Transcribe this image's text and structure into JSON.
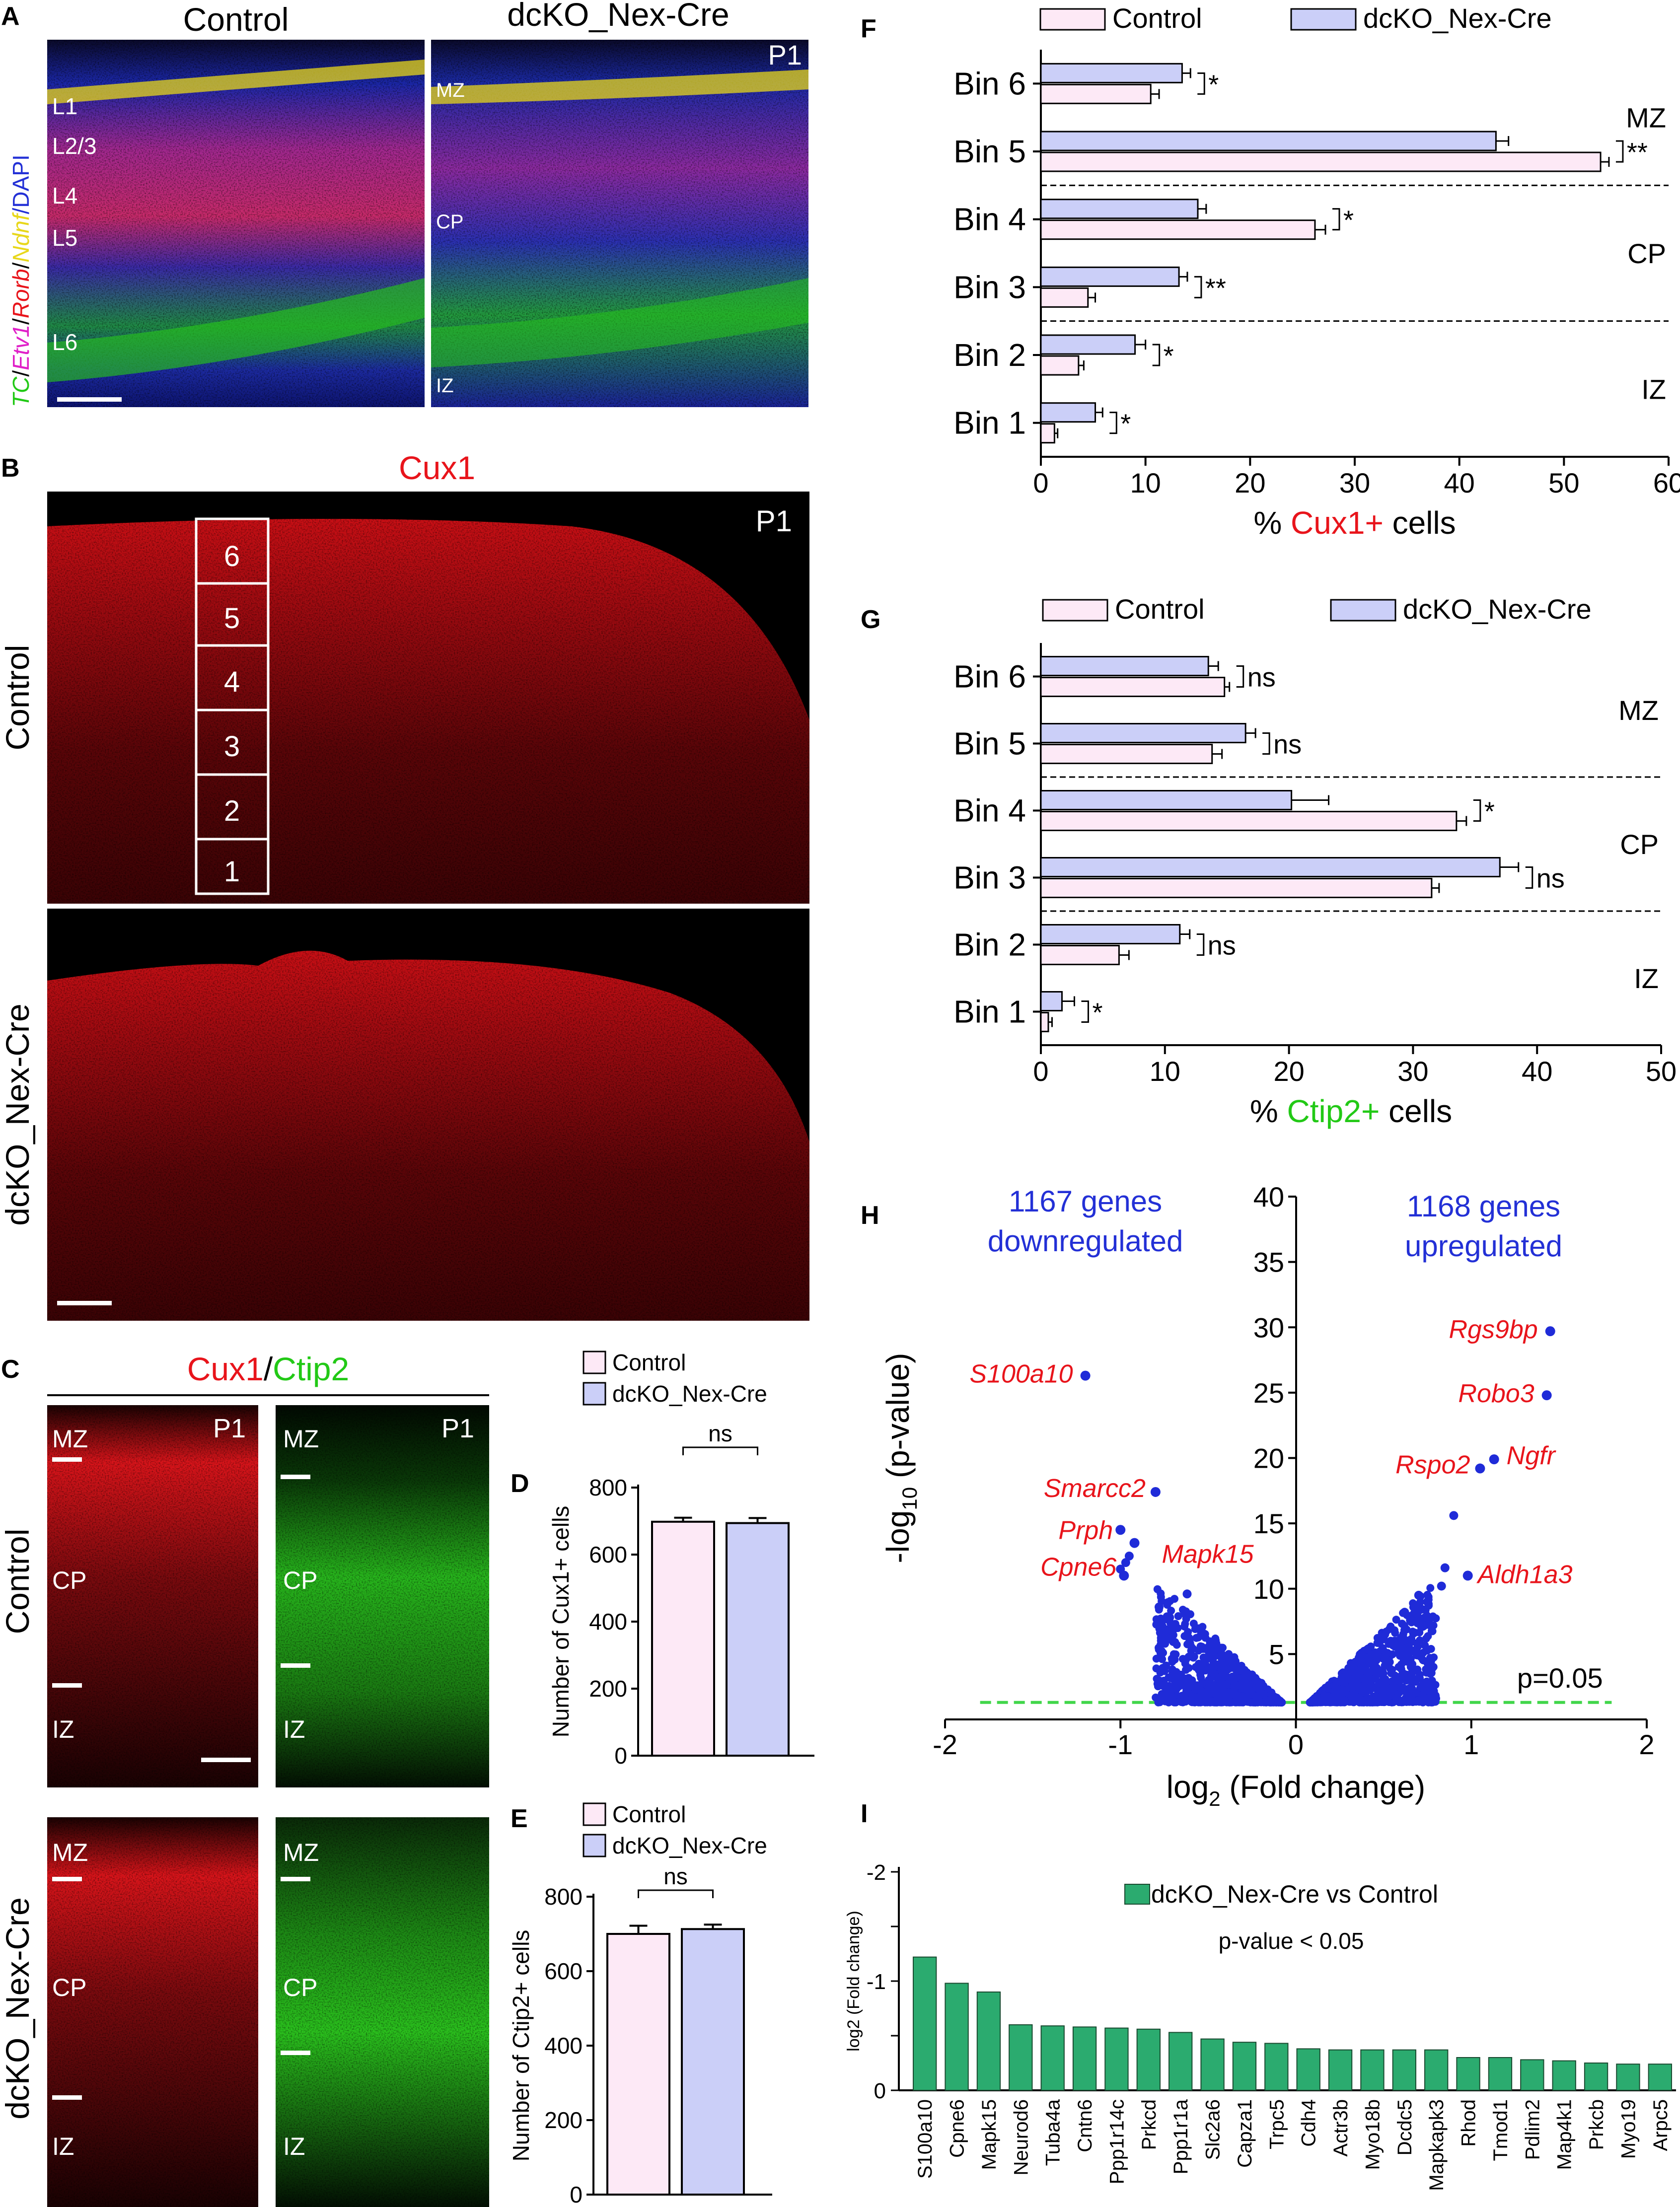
{
  "figure": {
    "panel_letters": {
      "A": "A",
      "B": "B",
      "C": "C",
      "D": "D",
      "E": "E",
      "F": "F",
      "G": "G",
      "H": "H",
      "I": "I"
    },
    "panel_A": {
      "col_control": "Control",
      "col_dcko": "dcKO_Nex-Cre",
      "age": "P1",
      "side_label_parts": [
        "TC",
        "/",
        "Etv1",
        "/",
        "Rorb",
        "/",
        "Ndnf",
        "/DAPI"
      ],
      "control_layers": [
        "L1",
        "L2/3",
        "L4",
        "L5",
        "L6"
      ],
      "dcko_zones": [
        "MZ",
        "CP",
        "IZ"
      ]
    },
    "panel_B": {
      "title": "Cux1",
      "age": "P1",
      "row_control": "Control",
      "row_dcko": "dcKO_Nex-Cre",
      "bins": [
        "6",
        "5",
        "4",
        "3",
        "2",
        "1"
      ]
    },
    "panel_C": {
      "title_part1": "Cux1",
      "title_sep": "/",
      "title_part2": "Ctip2",
      "age": "P1",
      "row_control": "Control",
      "row_dcko": "dcKO_Nex-Cre",
      "zones": [
        "MZ",
        "CP",
        "IZ"
      ]
    },
    "panel_H_text": {
      "down_count": "1167 genes",
      "down_word": "downregulated",
      "up_count": "1168 genes",
      "up_word": "upregulated",
      "threshold": "p=0.05",
      "ylabel_main": "-log",
      "ylabel_sub": "10",
      "ylabel_rest": " (p-value)",
      "xlabel_main": "log",
      "xlabel_sub": "2",
      "xlabel_rest": " (Fold change)"
    },
    "panel_I_text": {
      "legend": "dcKO_Nex-Cre vs Control",
      "note": "p-value < 0.05",
      "ylabel": "log2 (Fold change)"
    },
    "colors": {
      "control_fill": "#fde9f6",
      "dcko_fill": "#cbcff8",
      "cux1_red": "#e8141b",
      "ctip2_green": "#22c916",
      "gene_red": "#e8141b",
      "dot_blue": "#1f2bd8",
      "title_blue": "#2330d6",
      "threshold_green": "#41d64a",
      "bar_teal": "#2bab6f"
    }
  },
  "chart_data": [
    {
      "id": "D",
      "type": "bar",
      "ylabel": "Number of Cux1+ cells",
      "ylim": [
        0,
        800
      ],
      "yticks": [
        0,
        200,
        400,
        600,
        800
      ],
      "legend": [
        "Control",
        "dcKO_Nex-Cre"
      ],
      "categories": [
        "Control",
        "dcKO_Nex-Cre"
      ],
      "values": [
        698,
        694
      ],
      "errors": [
        12,
        15
      ],
      "significance": "ns"
    },
    {
      "id": "E",
      "type": "bar",
      "ylabel": "Number of Ctip2+ cells",
      "ylim": [
        0,
        800
      ],
      "yticks": [
        0,
        200,
        400,
        600,
        800
      ],
      "legend": [
        "Control",
        "dcKO_Nex-Cre"
      ],
      "categories": [
        "Control",
        "dcKO_Nex-Cre"
      ],
      "values": [
        700,
        713
      ],
      "errors": [
        22,
        12
      ],
      "significance": "ns"
    },
    {
      "id": "F",
      "type": "bar",
      "orientation": "horizontal",
      "xlabel_prefix": "% ",
      "xlabel_colored": "Cux1+",
      "xlabel_suffix": " cells",
      "xlim": [
        0,
        60
      ],
      "xticks": [
        0,
        10,
        20,
        30,
        40,
        50,
        60
      ],
      "categories": [
        "Bin 6",
        "Bin 5",
        "Bin 4",
        "Bin 3",
        "Bin 2",
        "Bin 1"
      ],
      "series": [
        {
          "name": "Control",
          "values": [
            10.5,
            53.5,
            26.2,
            4.5,
            3.6,
            1.3
          ],
          "errors": [
            0.8,
            0.8,
            1.0,
            0.7,
            0.5,
            0.3
          ]
        },
        {
          "name": "dcKO_Nex-Cre",
          "values": [
            13.5,
            43.5,
            15.0,
            13.2,
            9.0,
            5.2
          ],
          "errors": [
            0.8,
            1.2,
            0.8,
            0.8,
            1.0,
            0.7
          ]
        }
      ],
      "significance": [
        "*",
        "**",
        "*",
        "**",
        "*",
        "*"
      ],
      "zones": [
        "MZ",
        "CP",
        "IZ"
      ],
      "legend": [
        "Control",
        "dcKO_Nex-Cre"
      ]
    },
    {
      "id": "G",
      "type": "bar",
      "orientation": "horizontal",
      "xlabel_prefix": "% ",
      "xlabel_colored": "Ctip2+",
      "xlabel_suffix": " cells",
      "xlim": [
        0,
        50
      ],
      "xticks": [
        0,
        10,
        20,
        30,
        40,
        50
      ],
      "categories": [
        "Bin 6",
        "Bin 5",
        "Bin 4",
        "Bin 3",
        "Bin 2",
        "Bin 1"
      ],
      "series": [
        {
          "name": "Control",
          "values": [
            14.8,
            13.8,
            33.5,
            31.5,
            6.3,
            0.6
          ],
          "errors": [
            0.4,
            0.8,
            0.8,
            0.6,
            0.8,
            0.3
          ]
        },
        {
          "name": "dcKO_Nex-Cre",
          "values": [
            13.5,
            16.5,
            20.2,
            37.0,
            11.2,
            1.7
          ],
          "errors": [
            0.8,
            0.8,
            3.0,
            1.5,
            0.8,
            1.0
          ]
        }
      ],
      "significance": [
        "ns",
        "ns",
        "*",
        "ns",
        "ns",
        "*"
      ],
      "zones": [
        "MZ",
        "CP",
        "IZ"
      ],
      "legend": [
        "Control",
        "dcKO_Nex-Cre"
      ]
    },
    {
      "id": "H",
      "type": "scatter",
      "xlim": [
        -2,
        2
      ],
      "ylim": [
        0,
        40
      ],
      "xticks": [
        -2,
        -1,
        0,
        1,
        2
      ],
      "yticks": [
        5,
        10,
        15,
        20,
        25,
        30,
        35,
        40
      ],
      "threshold_y": 1.3,
      "labeled_points": [
        {
          "gene": "S100a10",
          "x": -1.2,
          "y": 26.3
        },
        {
          "gene": "Smarcc2",
          "x": -0.8,
          "y": 17.4
        },
        {
          "gene": "Prph",
          "x": -1.0,
          "y": 14.5
        },
        {
          "gene": "Mapk15",
          "x": -0.92,
          "y": 13.5
        },
        {
          "gene": "Cpne6",
          "x": -0.98,
          "y": 11.0
        },
        {
          "gene": "Rgs9bp",
          "x": 1.45,
          "y": 29.7
        },
        {
          "gene": "Robo3",
          "x": 1.43,
          "y": 24.8
        },
        {
          "gene": "Ngfr",
          "x": 1.13,
          "y": 19.9
        },
        {
          "gene": "Rspo2",
          "x": 1.05,
          "y": 19.2
        },
        {
          "gene": "Aldh1a3",
          "x": 0.98,
          "y": 11.0
        }
      ],
      "extra_points": [
        {
          "x": 0.9,
          "y": 15.6
        },
        {
          "x": 0.85,
          "y": 11.6
        },
        {
          "x": 0.83,
          "y": 10.2
        },
        {
          "x": -0.95,
          "y": 12.5
        },
        {
          "x": -0.97,
          "y": 12.0
        },
        {
          "x": -1.0,
          "y": 11.5
        },
        {
          "x": 0.7,
          "y": 9.5
        },
        {
          "x": 0.62,
          "y": 8.2
        },
        {
          "x": -0.78,
          "y": 8.6
        },
        {
          "x": -0.72,
          "y": 7.8
        },
        {
          "x": 0.75,
          "y": 9.0
        },
        {
          "x": -0.62,
          "y": 9.6
        }
      ]
    },
    {
      "id": "I",
      "type": "bar",
      "ylabel": "log2 (Fold change)",
      "ylim": [
        0,
        -2
      ],
      "yticks": [
        "0",
        "-0.5",
        "-1",
        "-1.5",
        "-2"
      ],
      "yticks_labeled": [
        "0",
        "-1",
        "-2"
      ],
      "legend": [
        "dcKO_Nex-Cre vs Control"
      ],
      "categories": [
        "S100a10",
        "Cpne6",
        "Mapk15",
        "Neurod6",
        "Tuba4a",
        "Cntn6",
        "Ppp1r14c",
        "Prkcd",
        "Ppp1r1a",
        "Slc2a6",
        "Capza1",
        "Trpc5",
        "Cdh4",
        "Actr3b",
        "Myo18b",
        "Dcdc5",
        "Mapkapk3",
        "Rhod",
        "Tmod1",
        "Pdlim2",
        "Map4k1",
        "Prkcb",
        "Myo19",
        "Arpc5"
      ],
      "values": [
        -1.22,
        -0.98,
        -0.9,
        -0.6,
        -0.59,
        -0.58,
        -0.57,
        -0.56,
        -0.53,
        -0.47,
        -0.44,
        -0.43,
        -0.38,
        -0.37,
        -0.37,
        -0.37,
        -0.37,
        -0.3,
        -0.3,
        -0.28,
        -0.27,
        -0.25,
        -0.24,
        -0.24
      ]
    }
  ]
}
